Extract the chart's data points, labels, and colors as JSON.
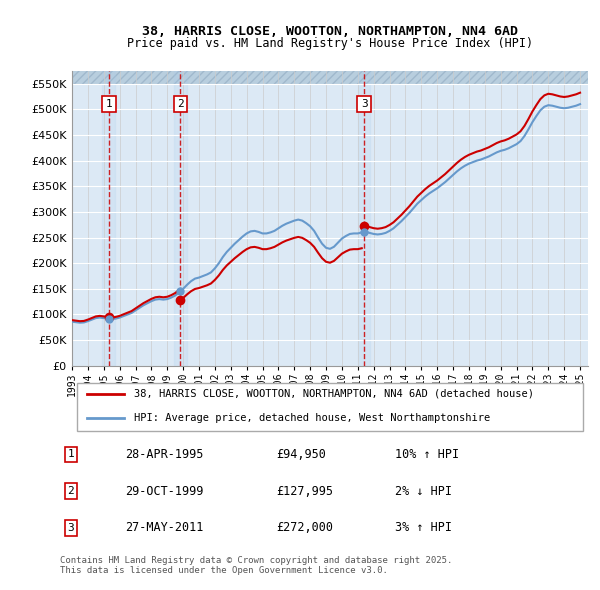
{
  "title_line1": "38, HARRIS CLOSE, WOOTTON, NORTHAMPTON, NN4 6AD",
  "title_line2": "Price paid vs. HM Land Registry's House Price Index (HPI)",
  "ylabel": "",
  "bg_color": "#ffffff",
  "plot_bg_color": "#dce9f5",
  "hatch_color": "#c8d8e8",
  "grid_color": "#ffffff",
  "sale_line_color": "#cc0000",
  "hpi_line_color": "#6699cc",
  "sale_marker_color": "#cc0000",
  "ylim": [
    0,
    575000
  ],
  "yticks": [
    0,
    50000,
    100000,
    150000,
    200000,
    250000,
    300000,
    350000,
    400000,
    450000,
    500000,
    550000
  ],
  "ytick_labels": [
    "£0",
    "£50K",
    "£100K",
    "£150K",
    "£200K",
    "£250K",
    "£300K",
    "£350K",
    "£400K",
    "£450K",
    "£500K",
    "£550K"
  ],
  "xmin": 1993.0,
  "xmax": 2025.5,
  "transactions": [
    {
      "num": 1,
      "date": "28-APR-1995",
      "price": 94950,
      "pct": "10%",
      "dir": "↑",
      "year": 1995.32
    },
    {
      "num": 2,
      "date": "29-OCT-1999",
      "price": 127995,
      "pct": "2%",
      "dir": "↓",
      "year": 1999.83
    },
    {
      "num": 3,
      "date": "27-MAY-2011",
      "price": 272000,
      "pct": "3%",
      "dir": "↑",
      "year": 2011.4
    }
  ],
  "legend_labels": [
    "38, HARRIS CLOSE, WOOTTON, NORTHAMPTON, NN4 6AD (detached house)",
    "HPI: Average price, detached house, West Northamptonshire"
  ],
  "footnote": "Contains HM Land Registry data © Crown copyright and database right 2025.\nThis data is licensed under the Open Government Licence v3.0.",
  "hpi_data": {
    "years": [
      1993.0,
      1993.25,
      1993.5,
      1993.75,
      1994.0,
      1994.25,
      1994.5,
      1994.75,
      1995.0,
      1995.25,
      1995.5,
      1995.75,
      1996.0,
      1996.25,
      1996.5,
      1996.75,
      1997.0,
      1997.25,
      1997.5,
      1997.75,
      1998.0,
      1998.25,
      1998.5,
      1998.75,
      1999.0,
      1999.25,
      1999.5,
      1999.75,
      2000.0,
      2000.25,
      2000.5,
      2000.75,
      2001.0,
      2001.25,
      2001.5,
      2001.75,
      2002.0,
      2002.25,
      2002.5,
      2002.75,
      2003.0,
      2003.25,
      2003.5,
      2003.75,
      2004.0,
      2004.25,
      2004.5,
      2004.75,
      2005.0,
      2005.25,
      2005.5,
      2005.75,
      2006.0,
      2006.25,
      2006.5,
      2006.75,
      2007.0,
      2007.25,
      2007.5,
      2007.75,
      2008.0,
      2008.25,
      2008.5,
      2008.75,
      2009.0,
      2009.25,
      2009.5,
      2009.75,
      2010.0,
      2010.25,
      2010.5,
      2010.75,
      2011.0,
      2011.25,
      2011.5,
      2011.75,
      2012.0,
      2012.25,
      2012.5,
      2012.75,
      2013.0,
      2013.25,
      2013.5,
      2013.75,
      2014.0,
      2014.25,
      2014.5,
      2014.75,
      2015.0,
      2015.25,
      2015.5,
      2015.75,
      2016.0,
      2016.25,
      2016.5,
      2016.75,
      2017.0,
      2017.25,
      2017.5,
      2017.75,
      2018.0,
      2018.25,
      2018.5,
      2018.75,
      2019.0,
      2019.25,
      2019.5,
      2019.75,
      2020.0,
      2020.25,
      2020.5,
      2020.75,
      2021.0,
      2021.25,
      2021.5,
      2021.75,
      2022.0,
      2022.25,
      2022.5,
      2022.75,
      2023.0,
      2023.25,
      2023.5,
      2023.75,
      2024.0,
      2024.25,
      2024.5,
      2024.75,
      2025.0
    ],
    "values": [
      86000,
      85000,
      84000,
      84500,
      87000,
      90000,
      93000,
      94000,
      93000,
      92000,
      91000,
      92000,
      94000,
      97000,
      100000,
      103000,
      108000,
      113000,
      118000,
      122000,
      126000,
      129000,
      130000,
      129000,
      130000,
      133000,
      137000,
      143000,
      150000,
      158000,
      165000,
      170000,
      172000,
      175000,
      178000,
      182000,
      190000,
      200000,
      212000,
      222000,
      230000,
      238000,
      245000,
      252000,
      258000,
      262000,
      263000,
      261000,
      258000,
      258000,
      260000,
      263000,
      268000,
      273000,
      277000,
      280000,
      283000,
      285000,
      283000,
      278000,
      272000,
      263000,
      250000,
      238000,
      230000,
      228000,
      232000,
      240000,
      248000,
      253000,
      257000,
      258000,
      258000,
      260000,
      261000,
      259000,
      257000,
      256000,
      257000,
      259000,
      263000,
      268000,
      275000,
      282000,
      290000,
      298000,
      307000,
      316000,
      323000,
      330000,
      336000,
      341000,
      346000,
      352000,
      358000,
      365000,
      372000,
      379000,
      385000,
      390000,
      394000,
      397000,
      400000,
      402000,
      405000,
      408000,
      412000,
      416000,
      419000,
      421000,
      424000,
      428000,
      432000,
      438000,
      448000,
      461000,
      475000,
      487000,
      498000,
      505000,
      508000,
      507000,
      505000,
      503000,
      502000,
      503000,
      505000,
      507000,
      510000
    ]
  },
  "sale_hpi_data": {
    "years": [
      1995.32,
      1999.83,
      2011.4
    ],
    "values": [
      86000,
      125000,
      264000
    ]
  }
}
